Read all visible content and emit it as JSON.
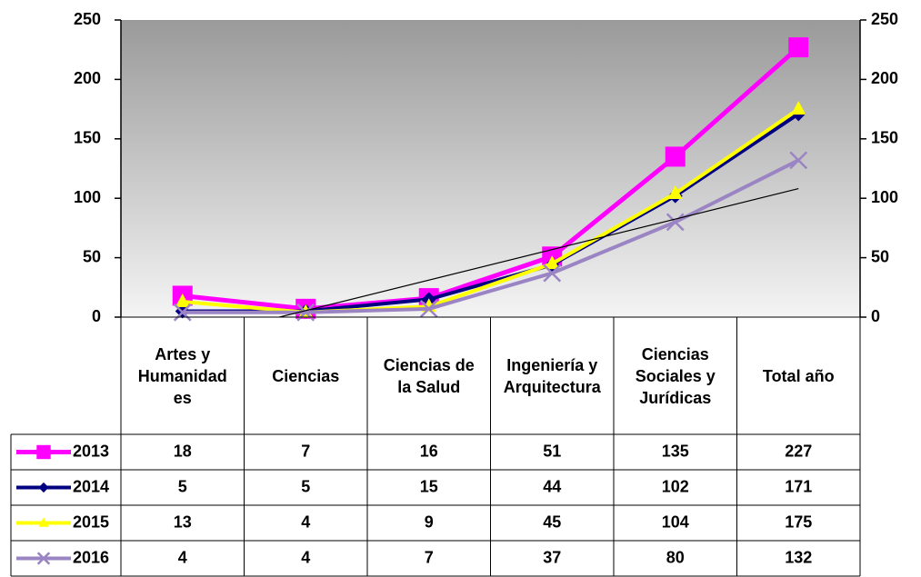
{
  "chart_data": {
    "type": "line",
    "categories": [
      "Artes y Humanidades",
      "Ciencias",
      "Ciencias de la Salud",
      "Ingeniería y Arquitectura",
      "Ciencias Sociales y Jurídicas",
      "Total año"
    ],
    "series": [
      {
        "name": "2013",
        "color": "#ff00ff",
        "marker": "square",
        "values": [
          18,
          7,
          16,
          51,
          135,
          227
        ]
      },
      {
        "name": "2014",
        "color": "#000080",
        "marker": "diamond",
        "values": [
          5,
          5,
          15,
          44,
          102,
          171
        ]
      },
      {
        "name": "2015",
        "color": "#ffff00",
        "marker": "triangle",
        "values": [
          13,
          4,
          9,
          45,
          104,
          175
        ]
      },
      {
        "name": "2016",
        "color": "#9b84c4",
        "marker": "x",
        "values": [
          4,
          4,
          7,
          37,
          80,
          132
        ]
      }
    ],
    "ylim": [
      0,
      250
    ],
    "yticks": [
      0,
      50,
      100,
      150,
      200,
      250
    ],
    "y2lim": [
      0,
      250
    ],
    "y2ticks": [
      0,
      50,
      100,
      150,
      200,
      250
    ],
    "grid": false,
    "data_table": true,
    "trendline": {
      "series": 3,
      "kind": "linear",
      "color": "#000000"
    }
  }
}
